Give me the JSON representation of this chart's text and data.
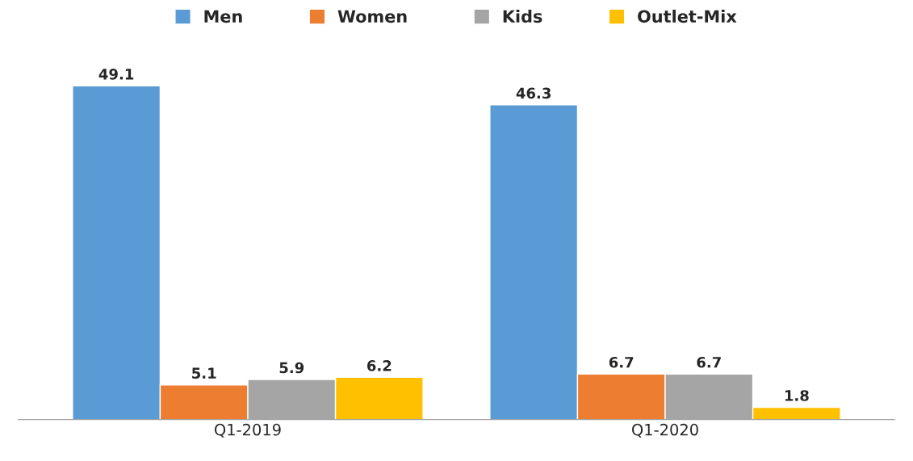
{
  "chart_data": {
    "type": "bar",
    "categories": [
      "Q1-2019",
      "Q1-2020"
    ],
    "series": [
      {
        "name": "Men",
        "color": "#5b9bd5",
        "values": [
          49.1,
          46.3
        ]
      },
      {
        "name": "Women",
        "color": "#ed7d31",
        "values": [
          5.1,
          6.7
        ]
      },
      {
        "name": "Kids",
        "color": "#a5a5a5",
        "values": [
          5.9,
          6.7
        ]
      },
      {
        "name": "Outlet-Mix",
        "color": "#ffc000",
        "values": [
          6.2,
          1.8
        ]
      }
    ],
    "data_labels": true,
    "legend": "top",
    "grid": false,
    "tick_labels": "x"
  }
}
